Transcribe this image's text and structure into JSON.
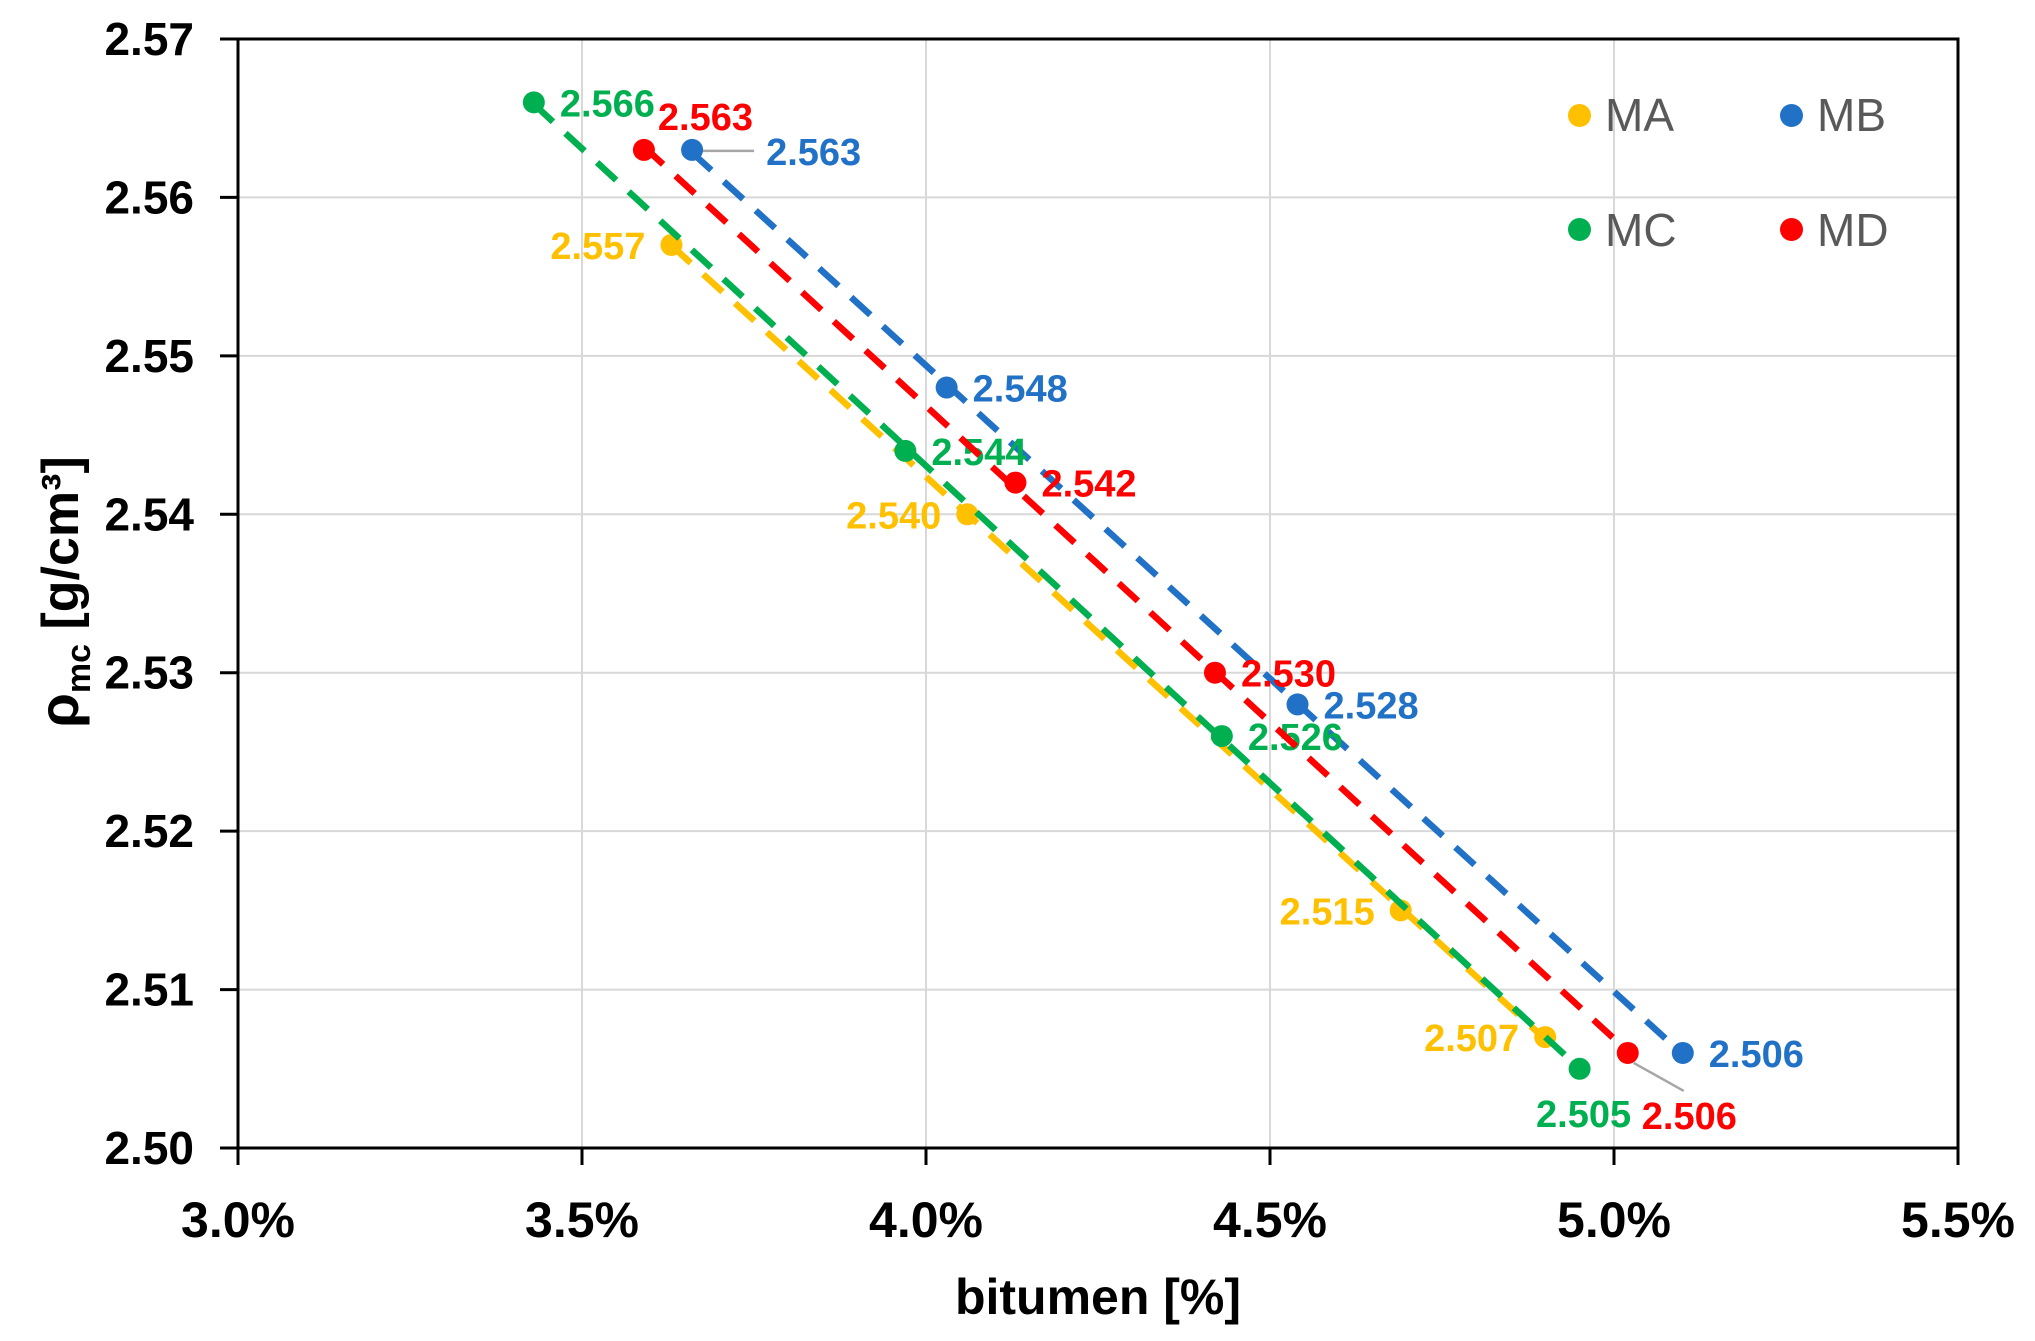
{
  "chart_data": {
    "type": "scatter",
    "title": "",
    "x_axis": {
      "label": "bitumen [%]",
      "range": [
        3.0,
        5.5
      ],
      "tick_values": [
        3.0,
        3.5,
        4.0,
        4.5,
        5.0,
        5.5
      ],
      "tick_labels": [
        "3.0%",
        "3.5%",
        "4.0%",
        "4.5%",
        "5.0%",
        "5.5%"
      ]
    },
    "y_axis": {
      "label_symbol": "ρ",
      "label_subscript": "mc",
      "label_units": " [g/cm³]",
      "range": [
        2.5,
        2.57
      ],
      "tick_values": [
        2.5,
        2.51,
        2.52,
        2.53,
        2.54,
        2.55,
        2.56,
        2.57
      ],
      "tick_labels": [
        "2.50",
        "2.51",
        "2.52",
        "2.53",
        "2.54",
        "2.55",
        "2.56",
        "2.57"
      ]
    },
    "grid": true,
    "legend": {
      "position": "top-right",
      "text_color": "#595959",
      "items": [
        {
          "label": "MA",
          "color": "#FFC000"
        },
        {
          "label": "MB",
          "color": "#2171C7"
        },
        {
          "label": "MC",
          "color": "#00B050"
        },
        {
          "label": "MD",
          "color": "#FF0000"
        }
      ]
    },
    "series": [
      {
        "name": "MA",
        "color": "#FFC000",
        "trendline": "dashed",
        "points": [
          {
            "x": 3.63,
            "y": 2.557,
            "label": "2.557",
            "label_pos": "left"
          },
          {
            "x": 4.06,
            "y": 2.54,
            "label": "2.540",
            "label_pos": "left"
          },
          {
            "x": 4.69,
            "y": 2.515,
            "label": "2.515",
            "label_pos": "left"
          },
          {
            "x": 4.9,
            "y": 2.507,
            "label": "2.507",
            "label_pos": "left"
          }
        ]
      },
      {
        "name": "MB",
        "color": "#2171C7",
        "trendline": "dashed",
        "points": [
          {
            "x": 3.66,
            "y": 2.563,
            "label": "2.563",
            "label_pos": "right-leader",
            "leader": "horizontal"
          },
          {
            "x": 4.03,
            "y": 2.548,
            "label": "2.548",
            "label_pos": "right"
          },
          {
            "x": 4.54,
            "y": 2.528,
            "label": "2.528",
            "label_pos": "right"
          },
          {
            "x": 5.1,
            "y": 2.506,
            "label": "2.506",
            "label_pos": "right"
          }
        ]
      },
      {
        "name": "MC",
        "color": "#00B050",
        "trendline": "dashed",
        "points": [
          {
            "x": 3.43,
            "y": 2.566,
            "label": "2.566",
            "label_pos": "right"
          },
          {
            "x": 3.97,
            "y": 2.544,
            "label": "2.544",
            "label_pos": "right"
          },
          {
            "x": 4.43,
            "y": 2.526,
            "label": "2.526",
            "label_pos": "right"
          },
          {
            "x": 4.95,
            "y": 2.505,
            "label": "2.505",
            "label_pos": "below"
          }
        ]
      },
      {
        "name": "MD",
        "color": "#FF0000",
        "trendline": "dashed",
        "points": [
          {
            "x": 3.59,
            "y": 2.563,
            "label": "2.563",
            "label_pos": "above-right"
          },
          {
            "x": 4.13,
            "y": 2.542,
            "label": "2.542",
            "label_pos": "right"
          },
          {
            "x": 4.42,
            "y": 2.53,
            "label": "2.530",
            "label_pos": "right"
          },
          {
            "x": 5.02,
            "y": 2.506,
            "label": "2.506",
            "label_pos": "below-right-leader",
            "leader": "diagonal"
          }
        ]
      }
    ],
    "colors": {
      "grid": "#D8D8D8",
      "axis": "#000000",
      "leader": "#A6A6A6",
      "tick_text": "#000000"
    }
  }
}
